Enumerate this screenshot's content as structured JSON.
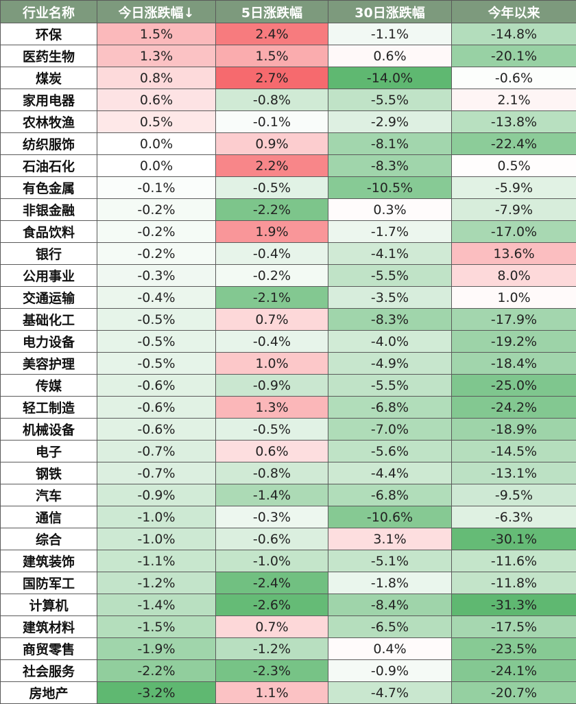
{
  "chart_data": {
    "type": "table",
    "columns": [
      "行业名称",
      "今日涨跌幅↓",
      "5日涨跌幅",
      "30日涨跌幅",
      "今年以来"
    ],
    "rows": [
      {
        "name": "环保",
        "values": [
          "1.5%",
          "2.4%",
          "-1.1%",
          "-14.8%"
        ]
      },
      {
        "name": "医药生物",
        "values": [
          "1.3%",
          "1.5%",
          "0.6%",
          "-20.1%"
        ]
      },
      {
        "name": "煤炭",
        "values": [
          "0.8%",
          "2.7%",
          "-14.0%",
          "-0.6%"
        ]
      },
      {
        "name": "家用电器",
        "values": [
          "0.6%",
          "-0.8%",
          "-5.5%",
          "2.1%"
        ]
      },
      {
        "name": "农林牧渔",
        "values": [
          "0.5%",
          "-0.1%",
          "-2.9%",
          "-13.8%"
        ]
      },
      {
        "name": "纺织服饰",
        "values": [
          "0.0%",
          "0.9%",
          "-8.1%",
          "-22.4%"
        ]
      },
      {
        "name": "石油石化",
        "values": [
          "0.0%",
          "2.2%",
          "-8.3%",
          "0.5%"
        ]
      },
      {
        "name": "有色金属",
        "values": [
          "-0.1%",
          "-0.5%",
          "-10.5%",
          "-5.9%"
        ]
      },
      {
        "name": "非银金融",
        "values": [
          "-0.2%",
          "-2.2%",
          "0.3%",
          "-7.9%"
        ]
      },
      {
        "name": "食品饮料",
        "values": [
          "-0.2%",
          "1.9%",
          "-1.7%",
          "-17.0%"
        ]
      },
      {
        "name": "银行",
        "values": [
          "-0.2%",
          "-0.4%",
          "-4.1%",
          "13.6%"
        ]
      },
      {
        "name": "公用事业",
        "values": [
          "-0.3%",
          "-0.2%",
          "-5.5%",
          "8.0%"
        ]
      },
      {
        "name": "交通运输",
        "values": [
          "-0.4%",
          "-2.1%",
          "-3.5%",
          "1.0%"
        ]
      },
      {
        "name": "基础化工",
        "values": [
          "-0.5%",
          "0.7%",
          "-8.3%",
          "-17.9%"
        ]
      },
      {
        "name": "电力设备",
        "values": [
          "-0.5%",
          "-0.4%",
          "-4.0%",
          "-19.2%"
        ]
      },
      {
        "name": "美容护理",
        "values": [
          "-0.5%",
          "1.0%",
          "-4.9%",
          "-18.4%"
        ]
      },
      {
        "name": "传媒",
        "values": [
          "-0.6%",
          "-0.9%",
          "-5.5%",
          "-25.0%"
        ]
      },
      {
        "name": "轻工制造",
        "values": [
          "-0.6%",
          "1.3%",
          "-6.8%",
          "-24.2%"
        ]
      },
      {
        "name": "机械设备",
        "values": [
          "-0.6%",
          "-0.5%",
          "-7.0%",
          "-18.9%"
        ]
      },
      {
        "name": "电子",
        "values": [
          "-0.7%",
          "0.6%",
          "-5.6%",
          "-14.5%"
        ]
      },
      {
        "name": "钢铁",
        "values": [
          "-0.7%",
          "-0.8%",
          "-4.4%",
          "-13.1%"
        ]
      },
      {
        "name": "汽车",
        "values": [
          "-0.9%",
          "-1.4%",
          "-6.8%",
          "-9.5%"
        ]
      },
      {
        "name": "通信",
        "values": [
          "-1.0%",
          "-0.3%",
          "-10.6%",
          "-6.3%"
        ]
      },
      {
        "name": "综合",
        "values": [
          "-1.0%",
          "-0.6%",
          "3.1%",
          "-30.1%"
        ]
      },
      {
        "name": "建筑装饰",
        "values": [
          "-1.1%",
          "-1.0%",
          "-5.1%",
          "-11.6%"
        ]
      },
      {
        "name": "国防军工",
        "values": [
          "-1.2%",
          "-2.4%",
          "-1.8%",
          "-11.8%"
        ]
      },
      {
        "name": "计算机",
        "values": [
          "-1.4%",
          "-2.6%",
          "-8.4%",
          "-31.3%"
        ]
      },
      {
        "name": "建筑材料",
        "values": [
          "-1.5%",
          "0.7%",
          "-6.5%",
          "-17.5%"
        ]
      },
      {
        "name": "商贸零售",
        "values": [
          "-1.9%",
          "-1.2%",
          "0.4%",
          "-23.5%"
        ]
      },
      {
        "name": "社会服务",
        "values": [
          "-2.2%",
          "-2.3%",
          "-0.9%",
          "-24.1%"
        ]
      },
      {
        "name": "房地产",
        "values": [
          "-3.2%",
          "1.1%",
          "-4.7%",
          "-20.7%"
        ]
      }
    ],
    "colors": {
      "header_bg": "#7d9a7d",
      "header_text": "#ffffff",
      "positive_max": "#f66a6e",
      "negative_max": "#5fb871",
      "neutral": "#ffffff"
    }
  }
}
